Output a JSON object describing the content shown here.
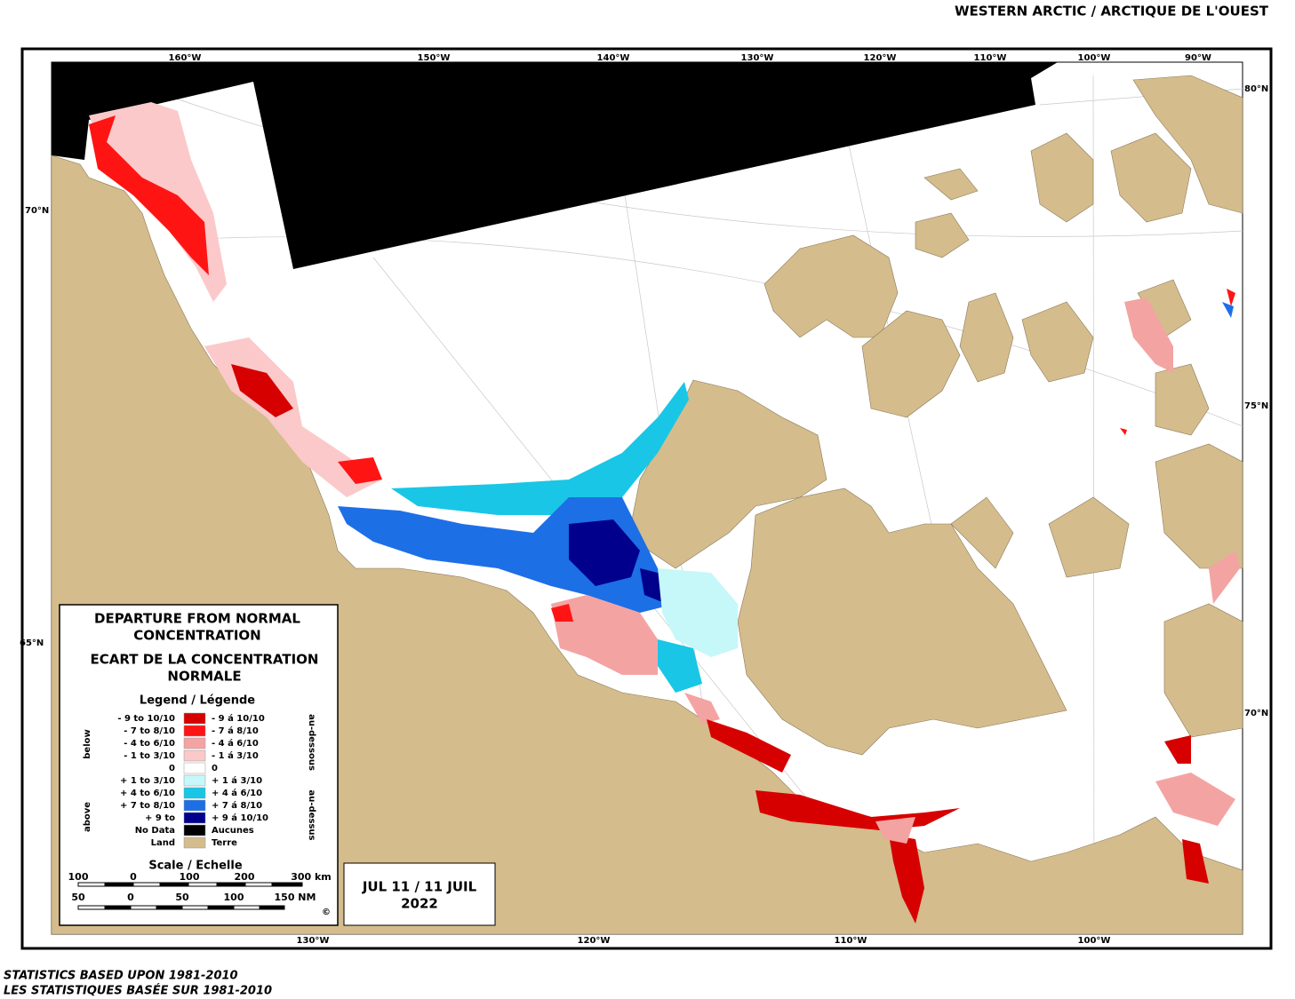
{
  "header": {
    "title": "WESTERN ARCTIC / ARCTIQUE DE L'OUEST"
  },
  "map": {
    "top_longitudes": [
      "160°W",
      "150°W",
      "140°W",
      "130°W",
      "120°W",
      "110°W",
      "100°W",
      "90°W"
    ],
    "bottom_longitudes": [
      "130°W",
      "120°W",
      "110°W",
      "100°W"
    ],
    "left_latitudes": [
      "70°N",
      "65°N"
    ],
    "right_latitudes": [
      "80°N",
      "75°N",
      "70°N"
    ]
  },
  "legend": {
    "title": [
      "DEPARTURE FROM NORMAL",
      "CONCENTRATION"
    ],
    "title_fr": [
      "ECART DE LA CONCENTRATION",
      "NORMALE"
    ],
    "heading": "Legend / Légende",
    "items": [
      {
        "left": "- 9 to 10/10",
        "right": "- 9 á 10/10",
        "color": "#d60000"
      },
      {
        "left": "- 7 to 8/10",
        "right": "- 7 á 8/10",
        "color": "#ff1414"
      },
      {
        "left": "- 4 to 6/10",
        "right": "- 4 á 6/10",
        "color": "#f4a3a3"
      },
      {
        "left": "- 1 to 3/10",
        "right": "- 1 á 3/10",
        "color": "#fbc9c9"
      },
      {
        "left": "0",
        "right": "0",
        "color": "#ffffff"
      },
      {
        "left": "+ 1 to 3/10",
        "right": "+ 1 á 3/10",
        "color": "#c6f7f9"
      },
      {
        "left": "+ 4 to 6/10",
        "right": "+ 4 á 6/10",
        "color": "#19c6e6"
      },
      {
        "left": "+ 7 to 8/10",
        "right": "+ 7 á 8/10",
        "color": "#1d6fe6"
      },
      {
        "left": "+ 9 to",
        "right": "+ 9 á 10/10",
        "color": "#00008c"
      },
      {
        "left": "No Data",
        "right": "Aucunes",
        "color": "#000000"
      },
      {
        "left": "Land",
        "right": "Terre",
        "color": "#d4bc8c"
      }
    ],
    "below": "below",
    "above": "above",
    "below_fr": "au-dessous",
    "above_fr": "au-dessus",
    "scale_title": "Scale / Echelle",
    "km_labels": [
      "100",
      "0",
      "100",
      "200",
      "300 km"
    ],
    "nm_labels": [
      "50",
      "0",
      "50",
      "100",
      "150 NM"
    ],
    "copyright": "©"
  },
  "date": {
    "lines": [
      "JUL 11 / 11 JUIL",
      "2022"
    ]
  },
  "footer": {
    "lines": [
      "STATISTICS BASED UPON 1981-2010",
      "LES STATISTIQUES BASÉE SUR 1981-2010"
    ]
  }
}
